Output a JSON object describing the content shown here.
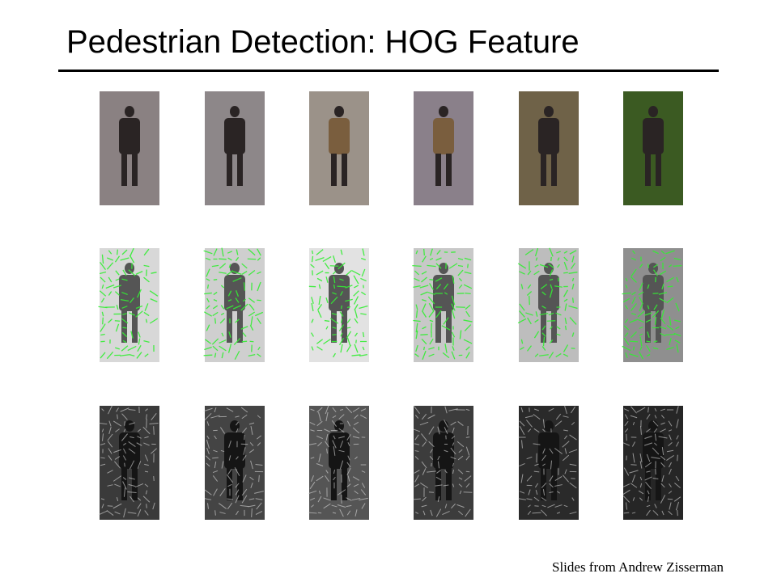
{
  "title": "Pedestrian Detection: HOG Feature",
  "credit": "Slides from Andrew Zisserman"
}
